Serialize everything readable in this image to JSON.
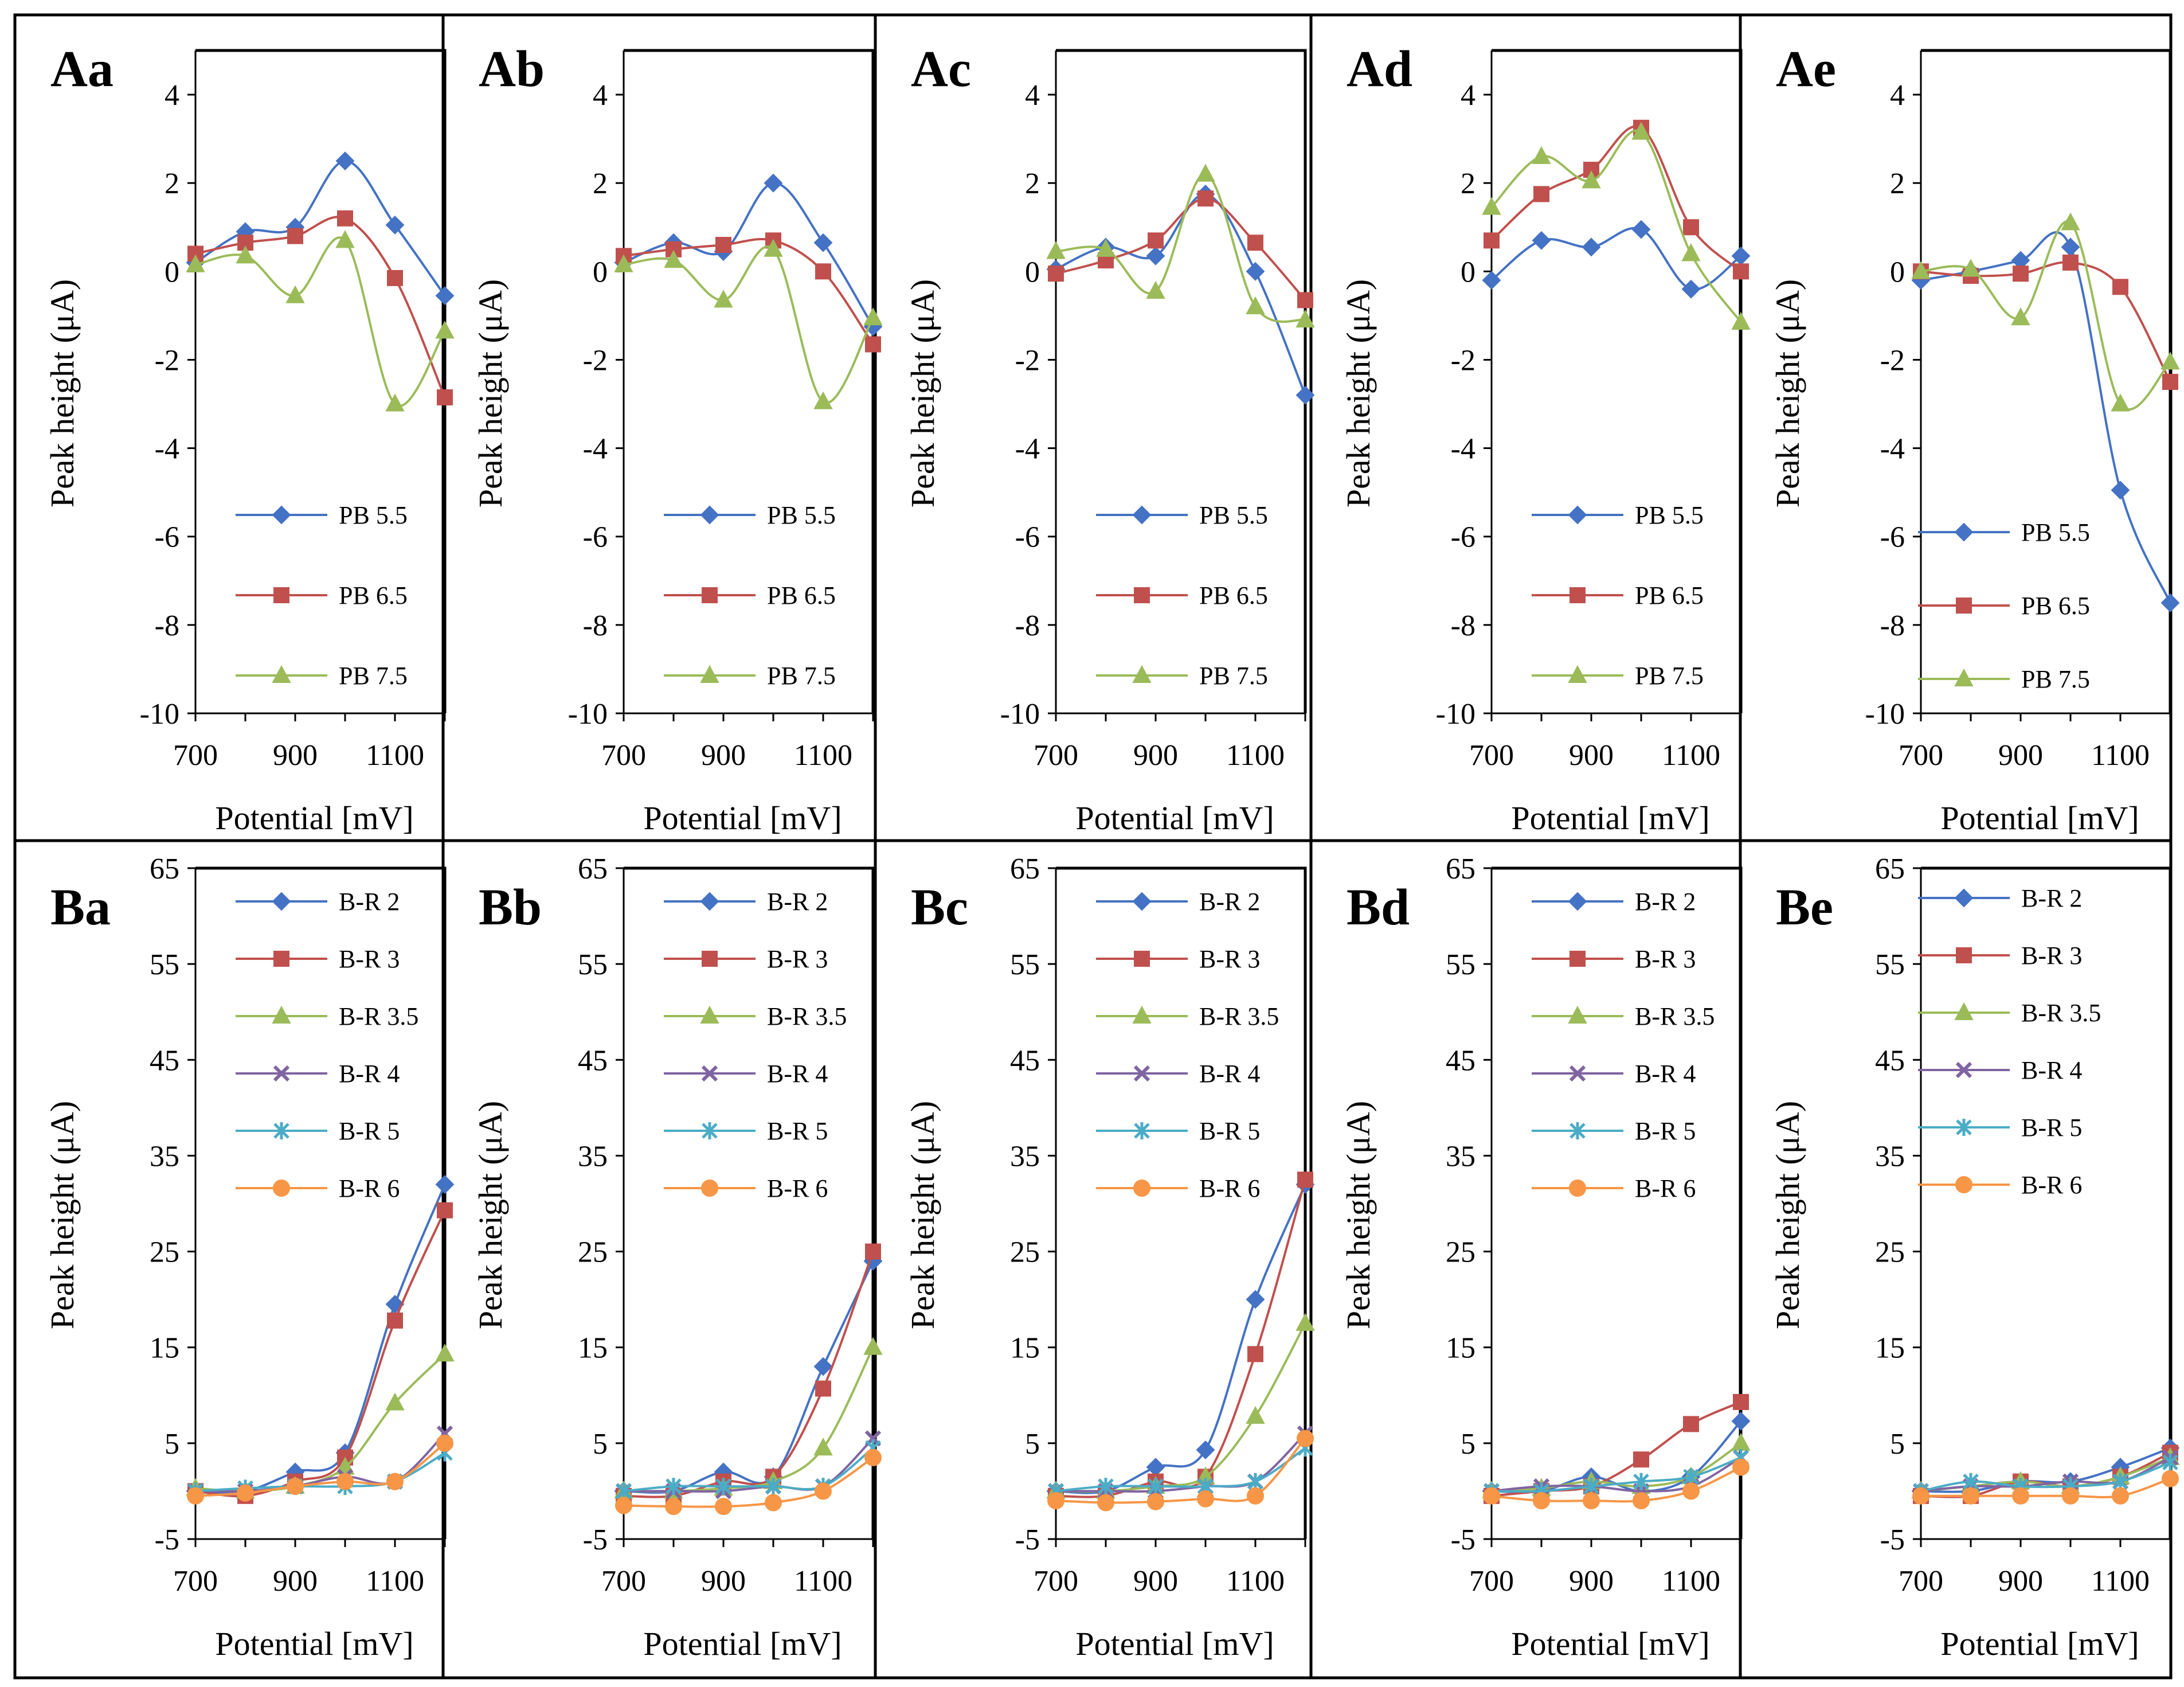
{
  "figure": {
    "x_axis_label": "Potential [mV]",
    "y_axis_label": "Peak height  (μA)"
  },
  "colors": {
    "blue": "#4472C4",
    "red": "#C0504D",
    "green": "#9BBB59",
    "purple": "#8064A2",
    "teal": "#4BACC6",
    "orange": "#F79646"
  },
  "chart_data": [
    {
      "id": "Aa",
      "type": "line",
      "title": "Aa",
      "xlabel": "Potential [mV]",
      "ylabel": "Peak height  (μA)",
      "x": [
        700,
        800,
        900,
        1000,
        1100,
        1200
      ],
      "xlim": [
        700,
        1200
      ],
      "xticks": [
        700,
        900,
        1100
      ],
      "ylim": [
        -10,
        5
      ],
      "yticks": [
        -10,
        -8,
        -6,
        -4,
        -2,
        0,
        2,
        4
      ],
      "legend_position": "bottom-center",
      "series": [
        {
          "name": "PB 5.5",
          "color": "blue",
          "marker": "diamond",
          "values": [
            0.2,
            0.9,
            1.0,
            2.5,
            1.05,
            -0.55
          ]
        },
        {
          "name": "PB 6.5",
          "color": "red",
          "marker": "square",
          "values": [
            0.4,
            0.65,
            0.8,
            1.2,
            -0.15,
            -2.85
          ]
        },
        {
          "name": "PB 7.5",
          "color": "green",
          "marker": "triangle",
          "values": [
            0.15,
            0.35,
            -0.55,
            0.7,
            -3.0,
            -1.35
          ]
        }
      ]
    },
    {
      "id": "Ab",
      "type": "line",
      "title": "Ab",
      "xlabel": "Potential [mV]",
      "ylabel": "Peak height  (μA)",
      "x": [
        700,
        800,
        900,
        1000,
        1100,
        1200
      ],
      "xlim": [
        700,
        1200
      ],
      "xticks": [
        700,
        900,
        1100
      ],
      "ylim": [
        -10,
        5
      ],
      "yticks": [
        -10,
        -8,
        -6,
        -4,
        -2,
        0,
        2,
        4
      ],
      "legend_position": "bottom-center",
      "series": [
        {
          "name": "PB 5.5",
          "color": "blue",
          "marker": "diamond",
          "values": [
            0.2,
            0.65,
            0.45,
            2.0,
            0.65,
            -1.25
          ]
        },
        {
          "name": "PB 6.5",
          "color": "red",
          "marker": "square",
          "values": [
            0.35,
            0.5,
            0.6,
            0.7,
            0.0,
            -1.65
          ]
        },
        {
          "name": "PB 7.5",
          "color": "green",
          "marker": "triangle",
          "values": [
            0.15,
            0.25,
            -0.65,
            0.5,
            -2.95,
            -1.05
          ]
        }
      ]
    },
    {
      "id": "Ac",
      "type": "line",
      "title": "Ac",
      "xlabel": "Potential [mV]",
      "ylabel": "Peak height  (μA)",
      "x": [
        700,
        800,
        900,
        1000,
        1100,
        1200
      ],
      "xlim": [
        700,
        1200
      ],
      "xticks": [
        700,
        900,
        1100
      ],
      "ylim": [
        -10,
        5
      ],
      "yticks": [
        -10,
        -8,
        -6,
        -4,
        -2,
        0,
        2,
        4
      ],
      "legend_position": "bottom-center",
      "series": [
        {
          "name": "PB 5.5",
          "color": "blue",
          "marker": "diamond",
          "values": [
            0.05,
            0.55,
            0.35,
            1.75,
            0.0,
            -2.8
          ]
        },
        {
          "name": "PB 6.5",
          "color": "red",
          "marker": "square",
          "values": [
            -0.05,
            0.25,
            0.7,
            1.65,
            0.65,
            -0.65
          ]
        },
        {
          "name": "PB 7.5",
          "color": "green",
          "marker": "triangle",
          "values": [
            0.45,
            0.5,
            -0.45,
            2.2,
            -0.8,
            -1.1
          ]
        }
      ]
    },
    {
      "id": "Ad",
      "type": "line",
      "title": "Ad",
      "xlabel": "Potential [mV]",
      "ylabel": "Peak height  (μA)",
      "x": [
        700,
        800,
        900,
        1000,
        1100,
        1200
      ],
      "xlim": [
        700,
        1200
      ],
      "xticks": [
        700,
        900,
        1100
      ],
      "ylim": [
        -10,
        5
      ],
      "yticks": [
        -10,
        -8,
        -6,
        -4,
        -2,
        0,
        2,
        4
      ],
      "legend_position": "bottom-center",
      "series": [
        {
          "name": "PB 5.5",
          "color": "blue",
          "marker": "diamond",
          "values": [
            -0.2,
            0.7,
            0.55,
            0.95,
            -0.4,
            0.35
          ]
        },
        {
          "name": "PB 6.5",
          "color": "red",
          "marker": "square",
          "values": [
            0.7,
            1.75,
            2.3,
            3.25,
            1.0,
            0.0
          ]
        },
        {
          "name": "PB 7.5",
          "color": "green",
          "marker": "triangle",
          "values": [
            1.45,
            2.6,
            2.05,
            3.15,
            0.4,
            -1.15
          ]
        }
      ]
    },
    {
      "id": "Ae",
      "type": "line",
      "title": "Ae",
      "xlabel": "Potential [mV]",
      "ylabel": "Peak height  (μA)",
      "x": [
        700,
        800,
        900,
        1000,
        1100,
        1200
      ],
      "xlim": [
        700,
        1200
      ],
      "xticks": [
        700,
        900,
        1100
      ],
      "ylim": [
        -10,
        5
      ],
      "yticks": [
        -10,
        -8,
        -6,
        -4,
        -2,
        0,
        2,
        4
      ],
      "legend_position": "bottom-center",
      "series": [
        {
          "name": "PB 5.5",
          "color": "blue",
          "marker": "diamond",
          "values": [
            -0.2,
            0.0,
            0.25,
            0.55,
            -4.95,
            -7.5
          ]
        },
        {
          "name": "PB 6.5",
          "color": "red",
          "marker": "square",
          "values": [
            0.0,
            -0.1,
            -0.05,
            0.2,
            -0.35,
            -2.5
          ]
        },
        {
          "name": "PB 7.5",
          "color": "green",
          "marker": "triangle",
          "values": [
            0.0,
            0.05,
            -1.05,
            1.1,
            -3.0,
            -2.05
          ]
        }
      ]
    },
    {
      "id": "Ba",
      "type": "line",
      "title": "Ba",
      "xlabel": "Potential [mV]",
      "ylabel": "Peak height  (μA)",
      "x": [
        700,
        800,
        900,
        1000,
        1100,
        1200
      ],
      "xlim": [
        700,
        1200
      ],
      "xticks": [
        700,
        900,
        1100
      ],
      "ylim": [
        -5,
        65
      ],
      "yticks": [
        -5,
        5,
        15,
        25,
        35,
        45,
        55,
        65
      ],
      "legend_position": "top-center",
      "series": [
        {
          "name": "B-R 2",
          "color": "blue",
          "marker": "diamond",
          "values": [
            0.0,
            0.0,
            2.0,
            4.0,
            19.5,
            32.0
          ]
        },
        {
          "name": "B-R 3",
          "color": "red",
          "marker": "square",
          "values": [
            0.0,
            -0.5,
            1.0,
            3.5,
            17.8,
            29.3
          ]
        },
        {
          "name": "B-R 3.5",
          "color": "green",
          "marker": "triangle",
          "values": [
            0.3,
            0.0,
            0.5,
            2.5,
            9.2,
            14.3
          ]
        },
        {
          "name": "B-R 4",
          "color": "purple",
          "marker": "x",
          "values": [
            0.0,
            0.0,
            0.5,
            1.5,
            1.0,
            6.0
          ]
        },
        {
          "name": "B-R 5",
          "color": "teal",
          "marker": "star",
          "values": [
            0.0,
            0.3,
            0.5,
            0.5,
            1.0,
            4.0
          ]
        },
        {
          "name": "B-R 6",
          "color": "orange",
          "marker": "circle",
          "values": [
            -0.5,
            -0.2,
            0.5,
            1.0,
            1.0,
            5.0
          ]
        }
      ]
    },
    {
      "id": "Bb",
      "type": "line",
      "title": "Bb",
      "xlabel": "Potential [mV]",
      "ylabel": "Peak height  (μA)",
      "x": [
        700,
        800,
        900,
        1000,
        1100,
        1200
      ],
      "xlim": [
        700,
        1200
      ],
      "xticks": [
        700,
        900,
        1100
      ],
      "ylim": [
        -5,
        65
      ],
      "yticks": [
        -5,
        5,
        15,
        25,
        35,
        45,
        55,
        65
      ],
      "legend_position": "top-center",
      "series": [
        {
          "name": "B-R 2",
          "color": "blue",
          "marker": "diamond",
          "values": [
            0.0,
            0.0,
            2.0,
            1.5,
            13.0,
            24.0
          ]
        },
        {
          "name": "B-R 3",
          "color": "red",
          "marker": "square",
          "values": [
            -0.5,
            -0.5,
            1.0,
            1.5,
            10.7,
            25.0
          ]
        },
        {
          "name": "B-R 3.5",
          "color": "green",
          "marker": "triangle",
          "values": [
            0.0,
            0.0,
            0.3,
            1.0,
            4.5,
            15.0
          ]
        },
        {
          "name": "B-R 4",
          "color": "purple",
          "marker": "x",
          "values": [
            0.0,
            0.0,
            0.0,
            0.5,
            0.5,
            5.5
          ]
        },
        {
          "name": "B-R 5",
          "color": "teal",
          "marker": "star",
          "values": [
            0.0,
            0.5,
            0.5,
            0.5,
            0.5,
            4.5
          ]
        },
        {
          "name": "B-R 6",
          "color": "orange",
          "marker": "circle",
          "values": [
            -1.5,
            -1.6,
            -1.6,
            -1.2,
            0.0,
            3.5
          ]
        }
      ]
    },
    {
      "id": "Bc",
      "type": "line",
      "title": "Bc",
      "xlabel": "Potential [mV]",
      "ylabel": "Peak height  (μA)",
      "x": [
        700,
        800,
        900,
        1000,
        1100,
        1200
      ],
      "xlim": [
        700,
        1200
      ],
      "xticks": [
        700,
        900,
        1100
      ],
      "ylim": [
        -5,
        65
      ],
      "yticks": [
        -5,
        5,
        15,
        25,
        35,
        45,
        55,
        65
      ],
      "legend_position": "top-center",
      "series": [
        {
          "name": "B-R 2",
          "color": "blue",
          "marker": "diamond",
          "values": [
            0.0,
            0.0,
            2.5,
            4.3,
            20.0,
            32.0
          ]
        },
        {
          "name": "B-R 3",
          "color": "red",
          "marker": "square",
          "values": [
            -0.5,
            -0.5,
            1.0,
            1.5,
            14.3,
            32.5
          ]
        },
        {
          "name": "B-R 3.5",
          "color": "green",
          "marker": "triangle",
          "values": [
            0.0,
            0.0,
            0.5,
            1.5,
            7.8,
            17.5
          ]
        },
        {
          "name": "B-R 4",
          "color": "purple",
          "marker": "x",
          "values": [
            0.0,
            0.0,
            0.0,
            0.5,
            1.0,
            6.0
          ]
        },
        {
          "name": "B-R 5",
          "color": "teal",
          "marker": "star",
          "values": [
            0.0,
            0.5,
            0.5,
            0.5,
            1.0,
            4.5
          ]
        },
        {
          "name": "B-R 6",
          "color": "orange",
          "marker": "circle",
          "values": [
            -1.0,
            -1.2,
            -1.1,
            -0.8,
            -0.5,
            5.5
          ]
        }
      ]
    },
    {
      "id": "Bd",
      "type": "line",
      "title": "Bd",
      "xlabel": "Potential [mV]",
      "ylabel": "Peak height  (μA)",
      "x": [
        700,
        800,
        900,
        1000,
        1100,
        1200
      ],
      "xlim": [
        700,
        1200
      ],
      "xticks": [
        700,
        900,
        1100
      ],
      "ylim": [
        -5,
        65
      ],
      "yticks": [
        -5,
        5,
        15,
        25,
        35,
        45,
        55,
        65
      ],
      "legend_position": "top-center",
      "series": [
        {
          "name": "B-R 2",
          "color": "blue",
          "marker": "diamond",
          "values": [
            0.0,
            0.0,
            1.5,
            0.0,
            1.5,
            7.3
          ]
        },
        {
          "name": "B-R 3",
          "color": "red",
          "marker": "square",
          "values": [
            -0.5,
            0.0,
            0.5,
            3.3,
            7.0,
            9.3
          ]
        },
        {
          "name": "B-R 3.5",
          "color": "green",
          "marker": "triangle",
          "values": [
            0.0,
            0.3,
            1.0,
            0.5,
            1.5,
            5.0
          ]
        },
        {
          "name": "B-R 4",
          "color": "purple",
          "marker": "x",
          "values": [
            0.0,
            0.5,
            0.5,
            0.0,
            0.5,
            3.5
          ]
        },
        {
          "name": "B-R 5",
          "color": "teal",
          "marker": "star",
          "values": [
            0.0,
            0.0,
            0.5,
            1.0,
            1.5,
            3.5
          ]
        },
        {
          "name": "B-R 6",
          "color": "orange",
          "marker": "circle",
          "values": [
            -0.5,
            -1.0,
            -1.0,
            -1.0,
            0.0,
            2.5
          ]
        }
      ]
    },
    {
      "id": "Be",
      "type": "line",
      "title": "Be",
      "xlabel": "Potential [mV]",
      "ylabel": "Peak height  (μA)",
      "x": [
        700,
        800,
        900,
        1000,
        1100,
        1200
      ],
      "xlim": [
        700,
        1200
      ],
      "xticks": [
        700,
        900,
        1100
      ],
      "ylim": [
        -5,
        65
      ],
      "yticks": [
        -5,
        5,
        15,
        25,
        35,
        45,
        55,
        65
      ],
      "legend_position": "top-center",
      "series": [
        {
          "name": "B-R 2",
          "color": "blue",
          "marker": "diamond",
          "values": [
            0.0,
            0.0,
            1.0,
            1.0,
            2.5,
            4.5
          ]
        },
        {
          "name": "B-R 3",
          "color": "red",
          "marker": "square",
          "values": [
            -0.5,
            -0.5,
            1.0,
            0.5,
            1.5,
            4.0
          ]
        },
        {
          "name": "B-R 3.5",
          "color": "green",
          "marker": "triangle",
          "values": [
            0.0,
            0.5,
            1.0,
            0.5,
            1.5,
            3.5
          ]
        },
        {
          "name": "B-R 4",
          "color": "purple",
          "marker": "x",
          "values": [
            0.0,
            0.5,
            0.5,
            1.0,
            1.0,
            3.5
          ]
        },
        {
          "name": "B-R 5",
          "color": "teal",
          "marker": "star",
          "values": [
            0.0,
            1.0,
            0.5,
            0.5,
            1.0,
            3.0
          ]
        },
        {
          "name": "B-R 6",
          "color": "orange",
          "marker": "circle",
          "values": [
            -0.5,
            -0.5,
            -0.5,
            -0.5,
            -0.5,
            1.3
          ]
        }
      ]
    }
  ]
}
